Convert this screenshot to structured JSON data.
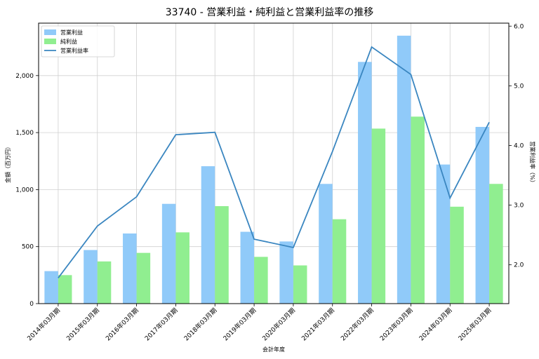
{
  "chart_data": {
    "type": "bar",
    "title": "33740 - 営業利益・純利益と営業利益率の推移",
    "xlabel": "会計年度",
    "ylabel": "金額（百万円）",
    "ylabel_right": "営業利益率（%）",
    "categories": [
      "2014年03月期",
      "2015年03月期",
      "2016年03月期",
      "2017年03月期",
      "2018年03月期",
      "2019年03月期",
      "2020年03月期",
      "2021年03月期",
      "2022年03月期",
      "2023年03月期",
      "2024年03月期",
      "2025年03月期"
    ],
    "series": [
      {
        "name": "営業利益",
        "type": "bar",
        "axis": "left",
        "color": "#90CAF9",
        "values": [
          285,
          470,
          615,
          875,
          1205,
          630,
          545,
          1050,
          2120,
          2350,
          1220,
          1550
        ]
      },
      {
        "name": "純利益",
        "type": "bar",
        "axis": "left",
        "color": "#90EE90",
        "values": [
          250,
          370,
          445,
          625,
          855,
          410,
          335,
          740,
          1535,
          1640,
          850,
          1050
        ]
      },
      {
        "name": "営業利益率",
        "type": "line",
        "axis": "right",
        "color": "#3A86C0",
        "values": [
          1.78,
          2.65,
          3.14,
          4.18,
          4.22,
          2.43,
          2.29,
          3.9,
          5.65,
          5.19,
          3.12,
          4.39
        ]
      }
    ],
    "ylim_left": [
      0,
      2460
    ],
    "ylim_right": [
      1.35,
      6.05
    ],
    "yticks_left": [
      0,
      500,
      1000,
      1500,
      2000
    ],
    "yticks_left_labels": [
      "0",
      "500",
      "1,000",
      "1,500",
      "2,000"
    ],
    "yticks_right": [
      2.0,
      3.0,
      4.0,
      5.0,
      6.0
    ],
    "yticks_right_labels": [
      "2.0",
      "3.0",
      "4.0",
      "5.0",
      "6.0"
    ],
    "grid": true,
    "legend_position": "top-left"
  }
}
